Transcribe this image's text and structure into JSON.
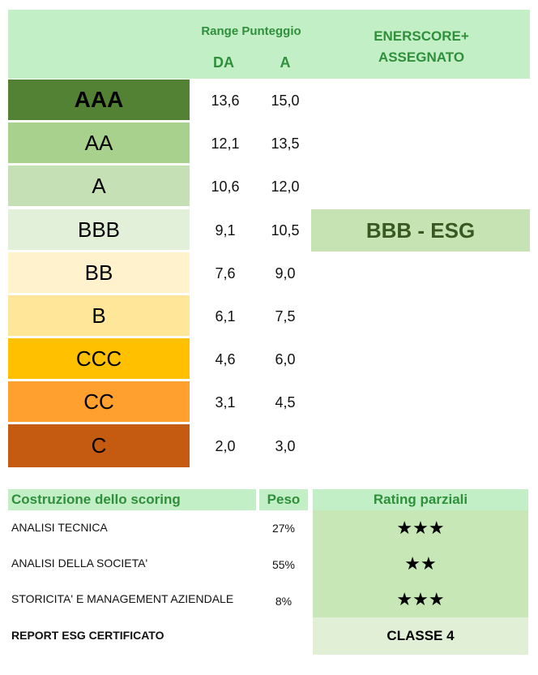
{
  "header": {
    "range_title": "Range Punteggio",
    "col_da": "DA",
    "col_a": "A",
    "assigned_title_line1": "ENERSCORE+",
    "assigned_title_line2": "ASSEGNATO"
  },
  "grades": [
    {
      "label": "AAA",
      "da": "13,6",
      "a": "15,0",
      "color": "#548235"
    },
    {
      "label": "AA",
      "da": "12,1",
      "a": "13,5",
      "color": "#a9d18e"
    },
    {
      "label": "A",
      "da": "10,6",
      "a": "12,0",
      "color": "#c5e0b4"
    },
    {
      "label": "BBB",
      "da": "9,1",
      "a": "10,5",
      "color": "#e2f0d9"
    },
    {
      "label": "BB",
      "da": "7,6",
      "a": "9,0",
      "color": "#fff2cc"
    },
    {
      "label": "B",
      "da": "6,1",
      "a": "7,5",
      "color": "#ffe699"
    },
    {
      "label": "CCC",
      "da": "4,6",
      "a": "6,0",
      "color": "#ffc000"
    },
    {
      "label": "CC",
      "da": "3,1",
      "a": "4,5",
      "color": "#ffa02f"
    },
    {
      "label": "C",
      "da": "2,0",
      "a": "3,0",
      "color": "#c55a11"
    }
  ],
  "assigned": "BBB - ESG",
  "scoring": {
    "headers": {
      "construction": "Costruzione dello scoring",
      "weight": "Peso",
      "partial": "Rating parziali"
    },
    "rows": [
      {
        "label": "ANALISI TECNICA",
        "peso": "27%",
        "stars": "★★★"
      },
      {
        "label": "ANALISI DELLA SOCIETA'",
        "peso": "55%",
        "stars": "★★"
      },
      {
        "label": "STORICITA' E MANAGEMENT AZIENDALE",
        "peso": "8%",
        "stars": "★★★"
      }
    ],
    "report_label": "REPORT ESG CERTIFICATO",
    "report_value": "CLASSE 4"
  },
  "colors": {
    "header_bg": "#c2efc6",
    "header_text": "#2f8f3a",
    "assigned_bg": "#c6e4b3",
    "assigned_text": "#375a22"
  }
}
